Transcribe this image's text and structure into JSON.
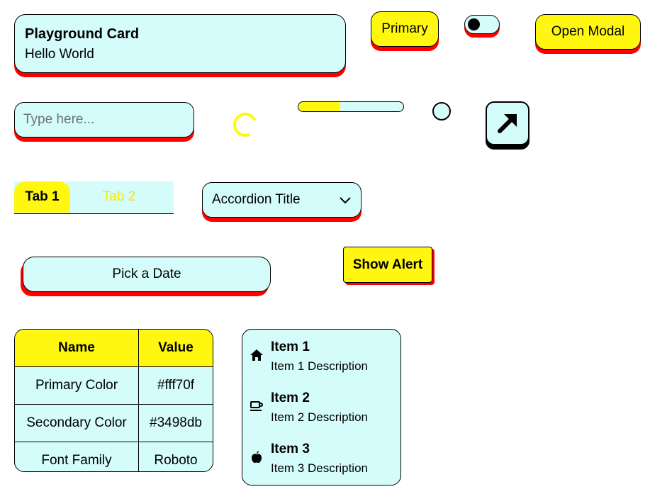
{
  "card": {
    "title": "Playground Card",
    "subtitle": "Hello World"
  },
  "buttons": {
    "primary": "Primary",
    "open_modal": "Open Modal",
    "show_alert": "Show Alert",
    "pick_date": "Pick a Date"
  },
  "toggle": {
    "checked": false
  },
  "input": {
    "placeholder": "Type here...",
    "value": ""
  },
  "progress": {
    "value_percent": 40
  },
  "radio": {
    "checked": false
  },
  "icon_button": {
    "icon": "arrow-up-right-icon"
  },
  "tabs": [
    {
      "label": "Tab 1",
      "active": true
    },
    {
      "label": "Tab 2",
      "active": false
    }
  ],
  "accordion": {
    "title": "Accordion Title",
    "icon": "chevron-down-icon"
  },
  "table": {
    "headers": [
      "Name",
      "Value"
    ],
    "rows": [
      [
        "Primary Color",
        "#fff70f"
      ],
      [
        "Secondary Color",
        "#3498db"
      ],
      [
        "Font Family",
        "Roboto"
      ]
    ]
  },
  "list": {
    "items": [
      {
        "title": "Item 1",
        "description": "Item 1 Description",
        "icon": "home-icon"
      },
      {
        "title": "Item 2",
        "description": "Item 2 Description",
        "icon": "coffee-icon"
      },
      {
        "title": "Item 3",
        "description": "Item 3 Description",
        "icon": "apple-icon"
      }
    ]
  },
  "colors": {
    "primary": "#fff70f",
    "surface": "#d4fcfb",
    "shadow": "#ff0000",
    "border": "#000000"
  }
}
